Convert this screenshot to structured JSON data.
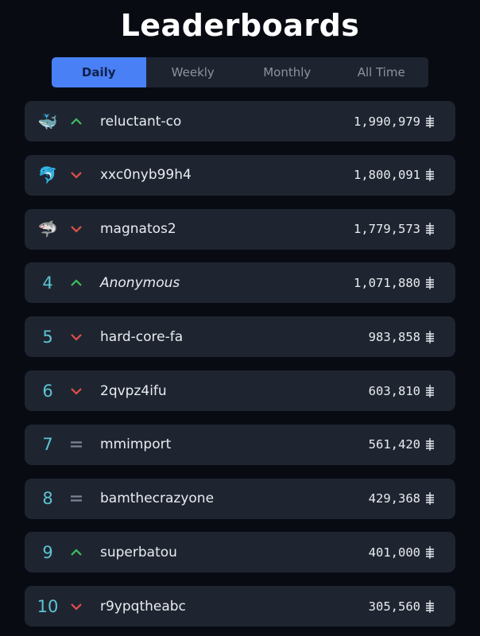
{
  "header": {
    "title": "Leaderboards"
  },
  "tabs": [
    {
      "label": "Daily",
      "active": true
    },
    {
      "label": "Weekly",
      "active": false
    },
    {
      "label": "Monthly",
      "active": false
    },
    {
      "label": "All Time",
      "active": false
    }
  ],
  "colors": {
    "accent": "#4a80f5",
    "up": "#3fbf5f",
    "down": "#e0504a",
    "same": "#7c8593",
    "rank": "#5cc4d4"
  },
  "currency_icon": "coin-icon",
  "rows": [
    {
      "rank": "🐳",
      "rank_icon": "whale-icon",
      "trend": "up",
      "name": "reluctant-co",
      "score": "1,990,979"
    },
    {
      "rank": "🐬",
      "rank_icon": "dolphin-icon",
      "trend": "down",
      "name": "xxc0nyb99h4",
      "score": "1,800,091"
    },
    {
      "rank": "🦈",
      "rank_icon": "shark-icon",
      "trend": "down",
      "name": "magnatos2",
      "score": "1,779,573"
    },
    {
      "rank": "4",
      "trend": "up",
      "name": "Anonymous",
      "anonymous": true,
      "score": "1,071,880"
    },
    {
      "rank": "5",
      "trend": "down",
      "name": "hard-core-fa",
      "score": "983,858"
    },
    {
      "rank": "6",
      "trend": "down",
      "name": "2qvpz4ifu",
      "score": "603,810"
    },
    {
      "rank": "7",
      "trend": "same",
      "name": "mmimport",
      "score": "561,420"
    },
    {
      "rank": "8",
      "trend": "same",
      "name": "bamthecrazyone",
      "score": "429,368"
    },
    {
      "rank": "9",
      "trend": "up",
      "name": "superbatou",
      "score": "401,000"
    },
    {
      "rank": "10",
      "trend": "down",
      "name": "r9ypqtheabc",
      "score": "305,560"
    }
  ]
}
